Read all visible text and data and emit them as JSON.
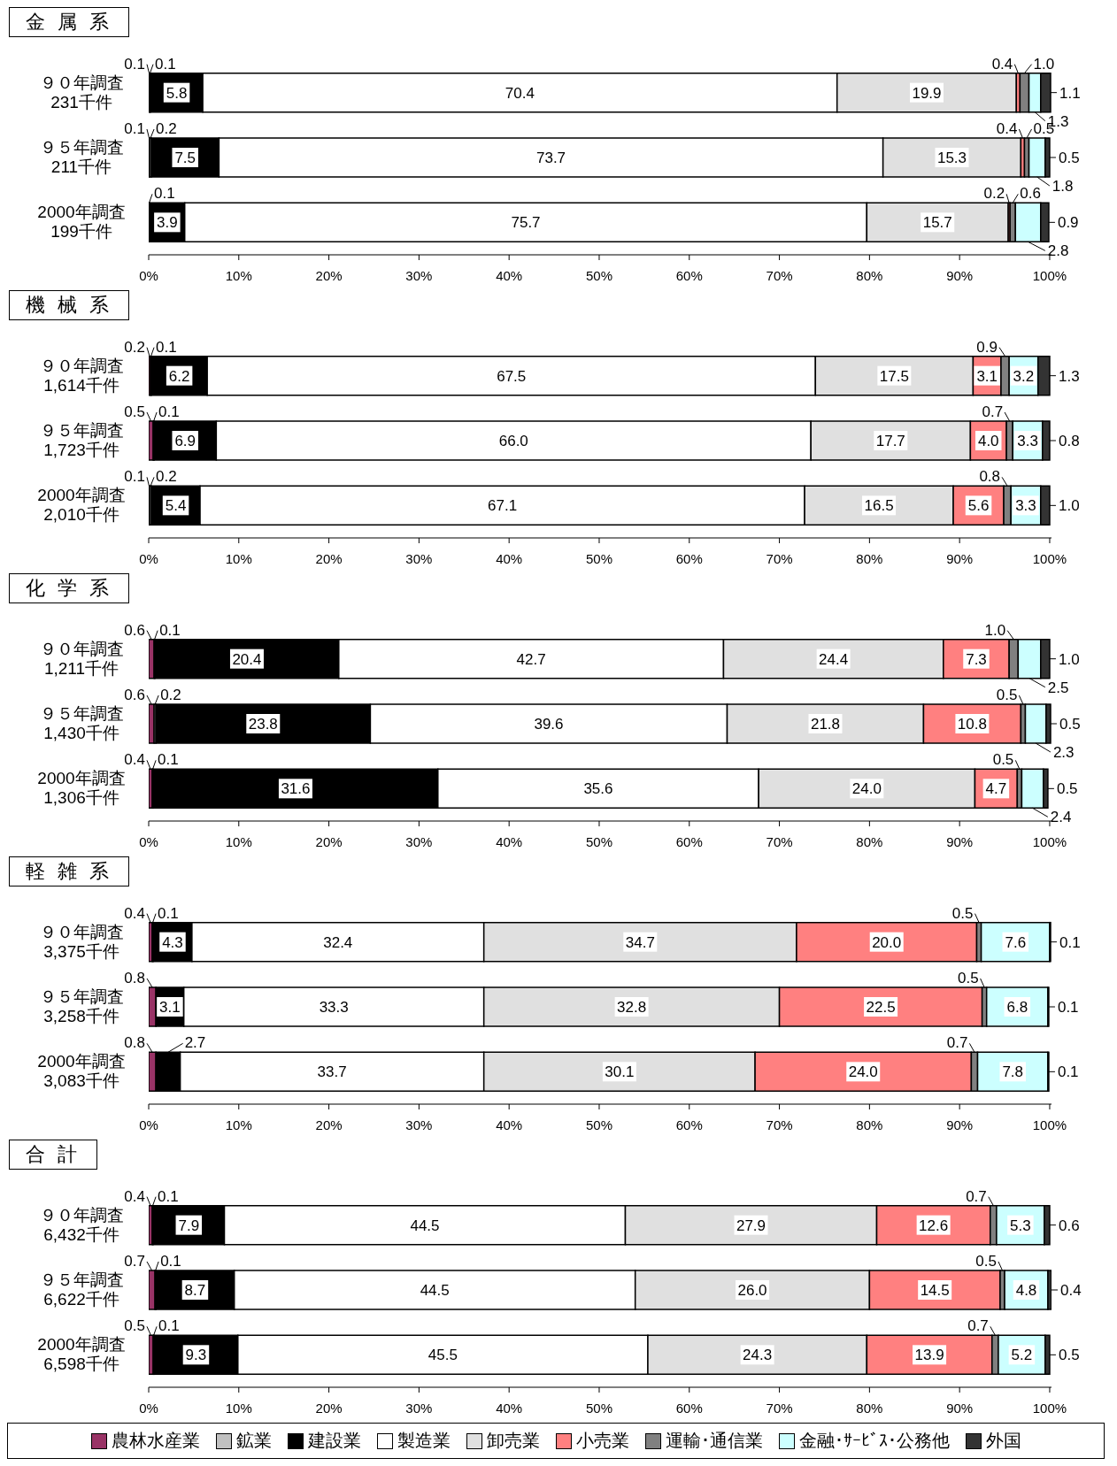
{
  "chart_data": [
    {
      "type": "bar",
      "orientation": "horizontal",
      "stacked": true,
      "title": "金 属 系",
      "categories": [
        "９０年調査\n231千件",
        "９５年調査\n211千件",
        "2000年調査\n199千件"
      ],
      "xlim": [
        0,
        100.2
      ],
      "xticks": [
        {
          "value": 0,
          "label": "0%"
        },
        {
          "value": 10,
          "label": "10%"
        },
        {
          "value": 20,
          "label": "20%"
        },
        {
          "value": 30,
          "label": "30%"
        },
        {
          "value": 40,
          "label": "40%"
        },
        {
          "value": 50,
          "label": "50%"
        },
        {
          "value": 60,
          "label": "60%"
        },
        {
          "value": 70,
          "label": "70%"
        },
        {
          "value": 80,
          "label": "80%"
        },
        {
          "value": 90,
          "label": "90%"
        },
        {
          "value": 100,
          "label": "100%"
        }
      ],
      "series": [
        {
          "color": "#993366",
          "values": [
            0.1,
            0.1,
            null
          ],
          "value_labels": [
            "0.1",
            "0.1",
            null
          ]
        },
        {
          "color": "#c0c0c0",
          "values": [
            0.1,
            0.2,
            0.1
          ],
          "value_labels": [
            "0.1",
            "0.2",
            "0.1"
          ]
        },
        {
          "color": "#000000",
          "values": [
            5.8,
            7.5,
            3.9
          ],
          "value_labels": [
            "5.8",
            "7.5",
            "3.9"
          ]
        },
        {
          "color": "#ffffff",
          "values": [
            70.4,
            73.7,
            75.7
          ],
          "value_labels": [
            "70.4",
            "73.7",
            "75.7"
          ]
        },
        {
          "color": "#e0e0e0",
          "values": [
            19.9,
            15.3,
            15.7
          ],
          "value_labels": [
            "19.9",
            "15.3",
            "15.7"
          ]
        },
        {
          "color": "#ff8080",
          "values": [
            0.4,
            0.4,
            0.2
          ],
          "value_labels": [
            "0.4",
            "0.4",
            "0.2"
          ]
        },
        {
          "color": "#808080",
          "values": [
            1.0,
            0.5,
            0.6
          ],
          "value_labels": [
            "1.0",
            "0.5",
            "0.6"
          ]
        },
        {
          "color": "#ccffff",
          "values": [
            1.3,
            1.8,
            2.8
          ],
          "value_labels": [
            "1.3",
            "1.8",
            "2.8"
          ]
        },
        {
          "color": "#333333",
          "values": [
            1.1,
            0.5,
            0.9
          ],
          "value_labels": [
            "1.1",
            "0.5",
            "0.9"
          ]
        }
      ]
    },
    {
      "type": "bar",
      "orientation": "horizontal",
      "stacked": true,
      "title": "機 械 系",
      "categories": [
        "９０年調査\n1,614千件",
        "９５年調査\n1,723千件",
        "2000年調査\n2,010千件"
      ],
      "xlim": [
        0,
        100.2
      ],
      "xticks": [
        {
          "value": 0,
          "label": "0%"
        },
        {
          "value": 10,
          "label": "10%"
        },
        {
          "value": 20,
          "label": "20%"
        },
        {
          "value": 30,
          "label": "30%"
        },
        {
          "value": 40,
          "label": "40%"
        },
        {
          "value": 50,
          "label": "50%"
        },
        {
          "value": 60,
          "label": "60%"
        },
        {
          "value": 70,
          "label": "70%"
        },
        {
          "value": 80,
          "label": "80%"
        },
        {
          "value": 90,
          "label": "90%"
        },
        {
          "value": 100,
          "label": "100%"
        }
      ],
      "series": [
        {
          "color": "#993366",
          "values": [
            0.2,
            0.5,
            0.1
          ],
          "value_labels": [
            "0.2",
            "0.5",
            "0.1"
          ]
        },
        {
          "color": "#c0c0c0",
          "values": [
            0.1,
            0.1,
            0.2
          ],
          "value_labels": [
            "0.1",
            "0.1",
            "0.2"
          ]
        },
        {
          "color": "#000000",
          "values": [
            6.2,
            6.9,
            5.4
          ],
          "value_labels": [
            "6.2",
            "6.9",
            "5.4"
          ]
        },
        {
          "color": "#ffffff",
          "values": [
            67.5,
            66.0,
            67.1
          ],
          "value_labels": [
            "67.5",
            "66.0",
            "67.1"
          ]
        },
        {
          "color": "#e0e0e0",
          "values": [
            17.5,
            17.7,
            16.5
          ],
          "value_labels": [
            "17.5",
            "17.7",
            "16.5"
          ]
        },
        {
          "color": "#ff8080",
          "values": [
            3.1,
            4.0,
            5.6
          ],
          "value_labels": [
            "3.1",
            "4.0",
            "5.6"
          ]
        },
        {
          "color": "#808080",
          "values": [
            0.9,
            0.7,
            0.8
          ],
          "value_labels": [
            "0.9",
            "0.7",
            "0.8"
          ]
        },
        {
          "color": "#ccffff",
          "values": [
            3.2,
            3.3,
            3.3
          ],
          "value_labels": [
            "3.2",
            "3.3",
            "3.3"
          ]
        },
        {
          "color": "#333333",
          "values": [
            1.3,
            0.8,
            1.0
          ],
          "value_labels": [
            "1.3",
            "0.8",
            "1.0"
          ]
        }
      ]
    },
    {
      "type": "bar",
      "orientation": "horizontal",
      "stacked": true,
      "title": "化 学 系",
      "categories": [
        "９０年調査\n1,211千件",
        "９５年調査\n1,430千件",
        "2000年調査\n1,306千件"
      ],
      "xlim": [
        0,
        100.2
      ],
      "xticks": [
        {
          "value": 0,
          "label": "0%"
        },
        {
          "value": 10,
          "label": "10%"
        },
        {
          "value": 20,
          "label": "20%"
        },
        {
          "value": 30,
          "label": "30%"
        },
        {
          "value": 40,
          "label": "40%"
        },
        {
          "value": 50,
          "label": "50%"
        },
        {
          "value": 60,
          "label": "60%"
        },
        {
          "value": 70,
          "label": "70%"
        },
        {
          "value": 80,
          "label": "80%"
        },
        {
          "value": 90,
          "label": "90%"
        },
        {
          "value": 100,
          "label": "100%"
        }
      ],
      "series": [
        {
          "color": "#993366",
          "values": [
            0.6,
            0.6,
            0.4
          ],
          "value_labels": [
            "0.6",
            "0.6",
            "0.4"
          ]
        },
        {
          "color": "#c0c0c0",
          "values": [
            0.1,
            0.2,
            0.1
          ],
          "value_labels": [
            "0.1",
            "0.2",
            "0.1"
          ]
        },
        {
          "color": "#000000",
          "values": [
            20.4,
            23.8,
            31.6
          ],
          "value_labels": [
            "20.4",
            "23.8",
            "31.6"
          ]
        },
        {
          "color": "#ffffff",
          "values": [
            42.7,
            39.6,
            35.6
          ],
          "value_labels": [
            "42.7",
            "39.6",
            "35.6"
          ]
        },
        {
          "color": "#e0e0e0",
          "values": [
            24.4,
            21.8,
            24.0
          ],
          "value_labels": [
            "24.4",
            "21.8",
            "24.0"
          ]
        },
        {
          "color": "#ff8080",
          "values": [
            7.3,
            10.8,
            4.7
          ],
          "value_labels": [
            "7.3",
            "10.8",
            "4.7"
          ]
        },
        {
          "color": "#808080",
          "values": [
            1.0,
            0.5,
            0.5
          ],
          "value_labels": [
            "1.0",
            "0.5",
            "0.5"
          ]
        },
        {
          "color": "#ccffff",
          "values": [
            2.5,
            2.3,
            2.4
          ],
          "value_labels": [
            "2.5",
            "2.3",
            "2.4"
          ]
        },
        {
          "color": "#333333",
          "values": [
            1.0,
            0.5,
            0.5
          ],
          "value_labels": [
            "1.0",
            "0.5",
            "0.5"
          ]
        }
      ]
    },
    {
      "type": "bar",
      "orientation": "horizontal",
      "stacked": true,
      "title": "軽 雑 系",
      "categories": [
        "９０年調査\n3,375千件",
        "９５年調査\n3,258千件",
        "2000年調査\n3,083千件"
      ],
      "xlim": [
        0,
        100.2
      ],
      "xticks": [
        {
          "value": 0,
          "label": "0%"
        },
        {
          "value": 10,
          "label": "10%"
        },
        {
          "value": 20,
          "label": "20%"
        },
        {
          "value": 30,
          "label": "30%"
        },
        {
          "value": 40,
          "label": "40%"
        },
        {
          "value": 50,
          "label": "50%"
        },
        {
          "value": 60,
          "label": "60%"
        },
        {
          "value": 70,
          "label": "70%"
        },
        {
          "value": 80,
          "label": "80%"
        },
        {
          "value": 90,
          "label": "90%"
        },
        {
          "value": 100,
          "label": "100%"
        }
      ],
      "series": [
        {
          "color": "#993366",
          "values": [
            0.4,
            0.8,
            0.8
          ],
          "value_labels": [
            "0.4",
            "0.8",
            "0.8"
          ]
        },
        {
          "color": "#c0c0c0",
          "values": [
            0.1,
            null,
            null
          ],
          "value_labels": [
            "0.1",
            null,
            null
          ]
        },
        {
          "color": "#000000",
          "values": [
            4.3,
            3.1,
            2.7
          ],
          "value_labels": [
            "4.3",
            "3.1",
            "2.7"
          ]
        },
        {
          "color": "#ffffff",
          "values": [
            32.4,
            33.3,
            33.7
          ],
          "value_labels": [
            "32.4",
            "33.3",
            "33.7"
          ]
        },
        {
          "color": "#e0e0e0",
          "values": [
            34.7,
            32.8,
            30.1
          ],
          "value_labels": [
            "34.7",
            "32.8",
            "30.1"
          ]
        },
        {
          "color": "#ff8080",
          "values": [
            20.0,
            22.5,
            24.0
          ],
          "value_labels": [
            "20.0",
            "22.5",
            "24.0"
          ]
        },
        {
          "color": "#808080",
          "values": [
            0.5,
            0.5,
            0.7
          ],
          "value_labels": [
            "0.5",
            "0.5",
            "0.7"
          ]
        },
        {
          "color": "#ccffff",
          "values": [
            7.6,
            6.8,
            7.8
          ],
          "value_labels": [
            "7.6",
            "6.8",
            "7.8"
          ]
        },
        {
          "color": "#333333",
          "values": [
            0.1,
            0.1,
            0.1
          ],
          "value_labels": [
            "0.1",
            "0.1",
            "0.1"
          ]
        }
      ]
    },
    {
      "type": "bar",
      "orientation": "horizontal",
      "stacked": true,
      "title": "合 計",
      "categories": [
        "９０年調査\n6,432千件",
        "９５年調査\n6,622千件",
        "2000年調査\n6,598千件"
      ],
      "xlim": [
        0,
        100.2
      ],
      "xticks": [
        {
          "value": 0,
          "label": "0%"
        },
        {
          "value": 10,
          "label": "10%"
        },
        {
          "value": 20,
          "label": "20%"
        },
        {
          "value": 30,
          "label": "30%"
        },
        {
          "value": 40,
          "label": "40%"
        },
        {
          "value": 50,
          "label": "50%"
        },
        {
          "value": 60,
          "label": "60%"
        },
        {
          "value": 70,
          "label": "70%"
        },
        {
          "value": 80,
          "label": "80%"
        },
        {
          "value": 90,
          "label": "90%"
        },
        {
          "value": 100,
          "label": "100%"
        }
      ],
      "legend": "bottom",
      "series": [
        {
          "name": "農林水産業",
          "color": "#993366",
          "values": [
            0.4,
            0.7,
            0.5
          ],
          "value_labels": [
            "0.4",
            "0.7",
            "0.5"
          ]
        },
        {
          "name": "鉱業",
          "color": "#c0c0c0",
          "values": [
            0.1,
            0.1,
            0.1
          ],
          "value_labels": [
            "0.1",
            "0.1",
            "0.1"
          ]
        },
        {
          "name": "建設業",
          "color": "#000000",
          "values": [
            7.9,
            8.7,
            9.3
          ],
          "value_labels": [
            "7.9",
            "8.7",
            "9.3"
          ]
        },
        {
          "name": "製造業",
          "color": "#ffffff",
          "values": [
            44.5,
            44.5,
            45.5
          ],
          "value_labels": [
            "44.5",
            "44.5",
            "45.5"
          ]
        },
        {
          "name": "卸売業",
          "color": "#e0e0e0",
          "values": [
            27.9,
            26.0,
            24.3
          ],
          "value_labels": [
            "27.9",
            "26.0",
            "24.3"
          ]
        },
        {
          "name": "小売業",
          "color": "#ff8080",
          "values": [
            12.6,
            14.5,
            13.9
          ],
          "value_labels": [
            "12.6",
            "14.5",
            "13.9"
          ]
        },
        {
          "name": "運輸･通信業",
          "color": "#808080",
          "values": [
            0.7,
            0.5,
            0.7
          ],
          "value_labels": [
            "0.7",
            "0.5",
            "0.7"
          ]
        },
        {
          "name": "金融･ｻｰﾋﾞｽ･公務他",
          "color": "#ccffff",
          "values": [
            5.3,
            4.8,
            5.2
          ],
          "value_labels": [
            "5.3",
            "4.8",
            "5.2"
          ]
        },
        {
          "name": "外国",
          "color": "#333333",
          "values": [
            0.6,
            0.4,
            0.5
          ],
          "value_labels": [
            "0.6",
            "0.4",
            "0.5"
          ]
        }
      ]
    }
  ]
}
